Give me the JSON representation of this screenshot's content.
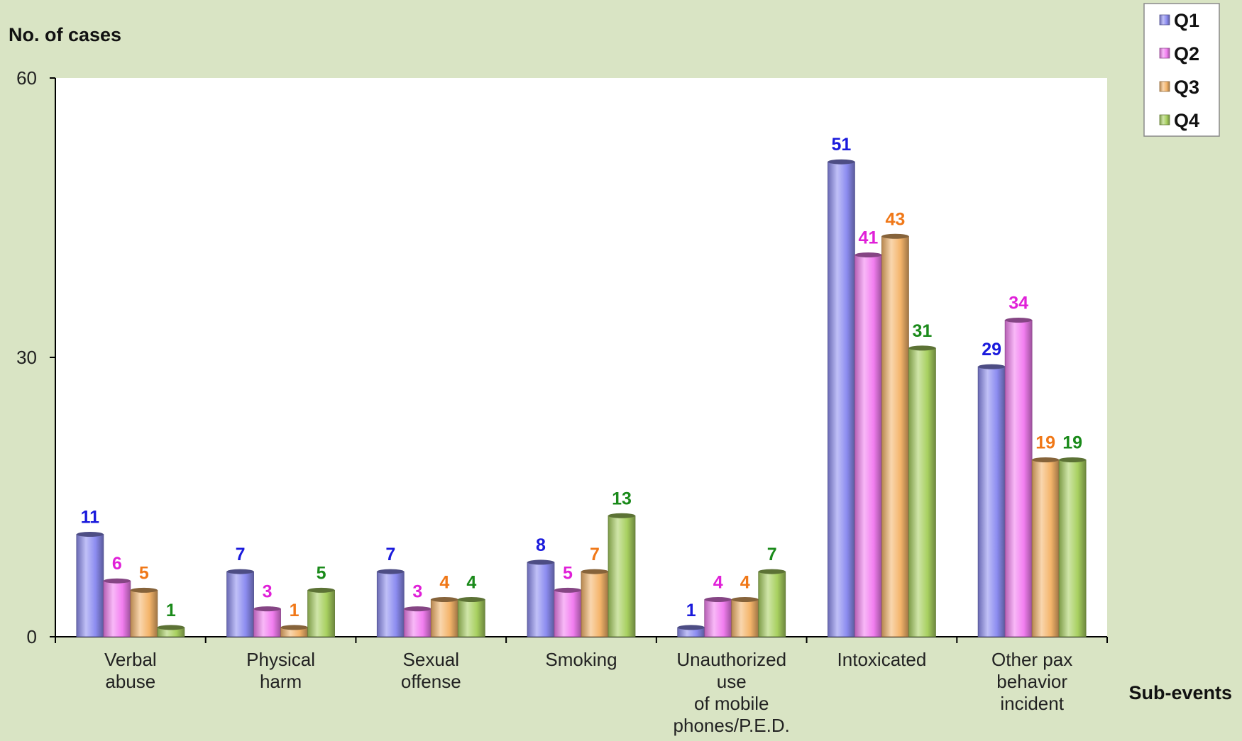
{
  "chart_data": {
    "type": "bar",
    "title": "",
    "ylabel": "No. of cases",
    "xlabel": "Sub-events",
    "ylim": [
      0,
      60
    ],
    "yticks": [
      0,
      30,
      60
    ],
    "grid": false,
    "legend_position": "top-right",
    "categories": [
      [
        "Verbal",
        "abuse"
      ],
      [
        "Physical",
        "harm"
      ],
      [
        "Sexual",
        "offense"
      ],
      [
        "Smoking"
      ],
      [
        "Unauthorized",
        "use",
        "of mobile",
        "phones/P.E.D."
      ],
      [
        "Intoxicated"
      ],
      [
        "Other pax",
        "behavior",
        "incident"
      ]
    ],
    "series": [
      {
        "name": "Q1",
        "color": "#8c8cf0",
        "label_color": "#1a1adc",
        "values": [
          11,
          7,
          7,
          8,
          1,
          51,
          29
        ]
      },
      {
        "name": "Q2",
        "color": "#f27ef0",
        "label_color": "#e020d8",
        "values": [
          6,
          3,
          3,
          5,
          4,
          41,
          34
        ]
      },
      {
        "name": "Q3",
        "color": "#f4b46a",
        "label_color": "#f07818",
        "values": [
          5,
          1,
          4,
          7,
          4,
          43,
          19
        ]
      },
      {
        "name": "Q4",
        "color": "#a8d060",
        "label_color": "#1a8a1a",
        "values": [
          1,
          5,
          4,
          13,
          7,
          31,
          19
        ]
      }
    ]
  }
}
